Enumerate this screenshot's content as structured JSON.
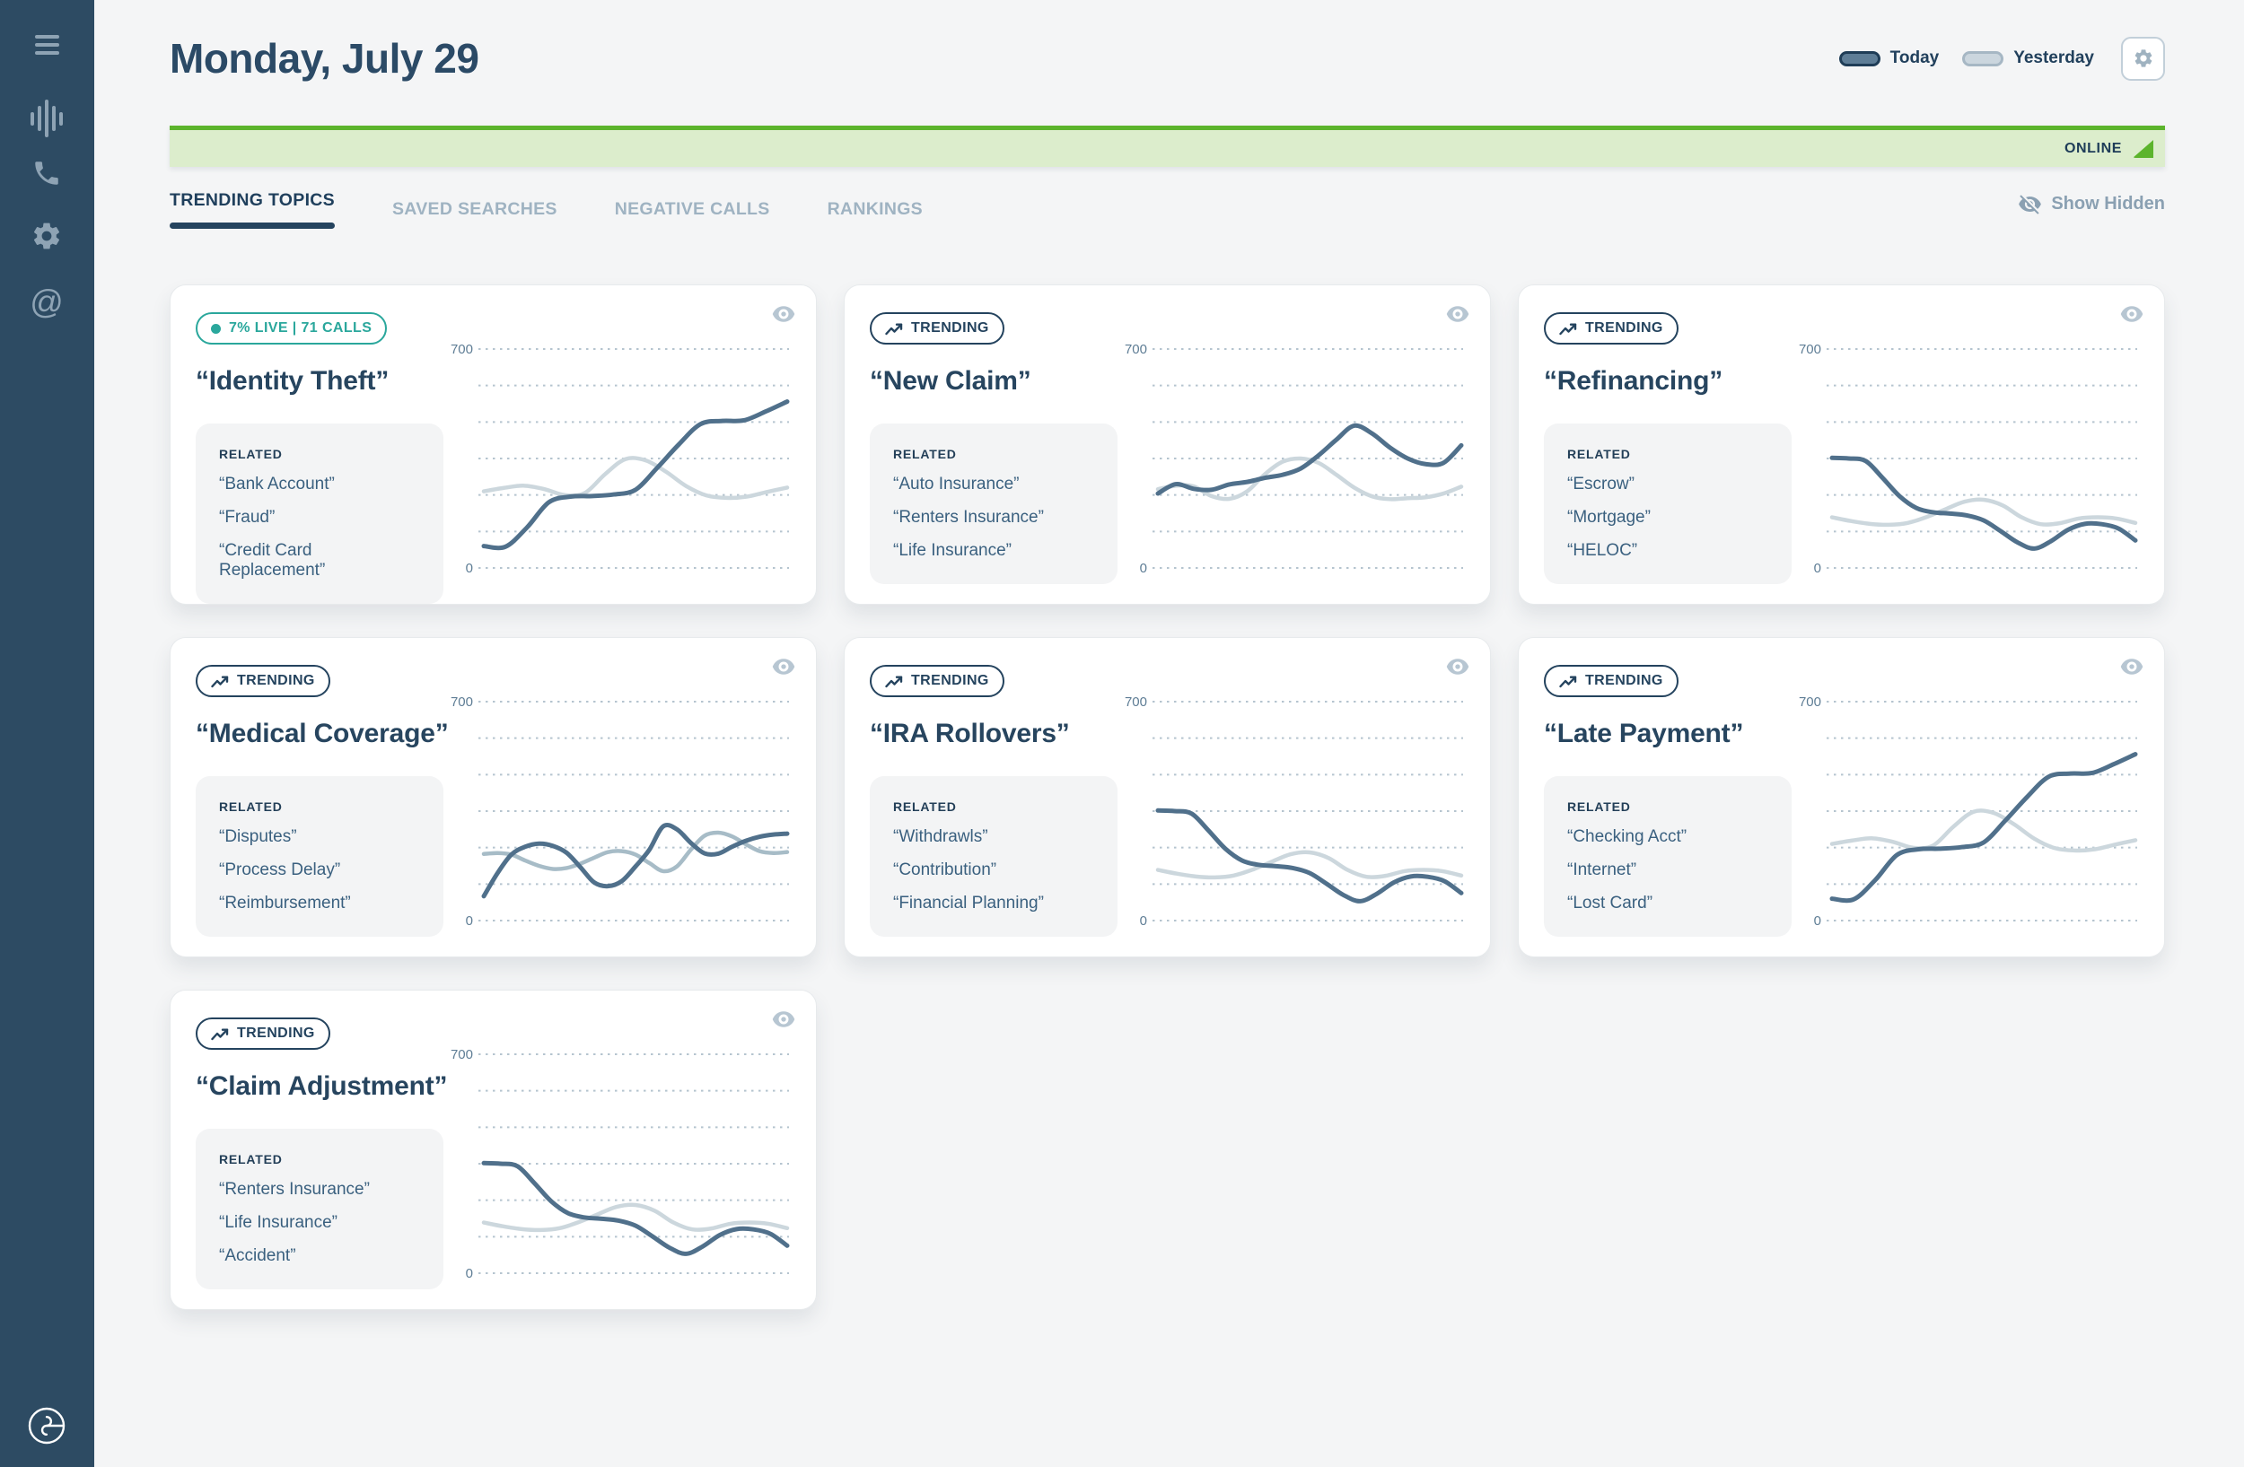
{
  "sidebar": {
    "icons": [
      {
        "name": "menu"
      },
      {
        "name": "call-waveform"
      },
      {
        "name": "phone"
      },
      {
        "name": "settings"
      },
      {
        "name": "mentions"
      }
    ]
  },
  "header": {
    "title": "Monday, July 29",
    "legend": [
      {
        "label": "Today",
        "color": "#5e7d96"
      },
      {
        "label": "Yesterday",
        "color": "#cbd6de"
      }
    ]
  },
  "banner": {
    "status": "ONLINE"
  },
  "tabs": [
    {
      "label": "TRENDING TOPICS",
      "active": true
    },
    {
      "label": "SAVED SEARCHES",
      "active": false
    },
    {
      "label": "NEGATIVE CALLS",
      "active": false
    },
    {
      "label": "RANKINGS",
      "active": false
    }
  ],
  "show_hidden_label": "Show Hidden",
  "related_label": "RELATED",
  "colors": {
    "accent_teal": "#2aa79c",
    "navy": "#24435e",
    "online_green": "#5cb42c",
    "online_green_bg": "#dcedcc",
    "today_line": "#50708b",
    "yesterday_line": "#ccd7dd"
  },
  "cards": [
    {
      "badge": {
        "type": "live",
        "text": "7% LIVE | 71 CALLS"
      },
      "title": "“Identity Theft”",
      "related": [
        "“Bank Account”",
        "“Fraud”",
        "“Credit Card Replacement”"
      ]
    },
    {
      "badge": {
        "type": "trending",
        "text": "TRENDING"
      },
      "title": "“New Claim”",
      "related": [
        "“Auto Insurance”",
        "“Renters Insurance”",
        "“Life Insurance”"
      ]
    },
    {
      "badge": {
        "type": "trending",
        "text": "TRENDING"
      },
      "title": "“Refinancing”",
      "related": [
        "“Escrow”",
        "“Mortgage”",
        "“HELOC”"
      ]
    },
    {
      "badge": {
        "type": "trending",
        "text": "TRENDING"
      },
      "title": "“Medical Coverage”",
      "related": [
        "“Disputes”",
        "“Process Delay”",
        "“Reimbursement”"
      ]
    },
    {
      "badge": {
        "type": "trending",
        "text": "TRENDING"
      },
      "title": "“IRA Rollovers”",
      "related": [
        "“Withdrawls”",
        "“Contribution”",
        "“Financial Planning”"
      ]
    },
    {
      "badge": {
        "type": "trending",
        "text": "TRENDING"
      },
      "title": "“Late Payment”",
      "related": [
        "“Checking Acct”",
        "“Internet”",
        "“Lost Card”"
      ]
    },
    {
      "badge": {
        "type": "trending",
        "text": "TRENDING"
      },
      "title": "“Claim Adjustment”",
      "related": [
        "“Renters Insurance”",
        "“Life Insurance”",
        "“Accident”"
      ]
    }
  ],
  "chart_data": [
    {
      "type": "line",
      "topic": "Identity Theft",
      "ylim": [
        0,
        700
      ],
      "yticks": [
        "700",
        "0"
      ],
      "gridlines": 7,
      "grid_style": "dotted",
      "legend_position": "page-header",
      "series": [
        {
          "name": "Today",
          "color": "#50708b",
          "values": [
            70,
            68,
            130,
            210,
            228,
            230,
            235,
            250,
            320,
            395,
            460,
            470,
            472,
            500,
            532
          ]
        },
        {
          "name": "Yesterday",
          "color": "#ccd7dd",
          "values": [
            245,
            256,
            263,
            252,
            233,
            240,
            300,
            348,
            344,
            308,
            262,
            232,
            224,
            228,
            243,
            257
          ]
        }
      ]
    },
    {
      "type": "line",
      "topic": "New Claim",
      "ylim": [
        0,
        700
      ],
      "yticks": [
        "700",
        "0"
      ],
      "gridlines": 7,
      "grid_style": "dotted",
      "legend_position": "page-header",
      "series": [
        {
          "name": "Today",
          "color": "#50708b",
          "values": [
            238,
            268,
            253,
            250,
            267,
            275,
            288,
            298,
            318,
            360,
            410,
            455,
            430,
            385,
            350,
            332,
            336,
            392
          ]
        },
        {
          "name": "Yesterday",
          "color": "#ccd7dd",
          "values": [
            252,
            263,
            261,
            230,
            221,
            245,
            300,
            340,
            350,
            336,
            298,
            257,
            229,
            220,
            223,
            226,
            238,
            260
          ]
        }
      ]
    },
    {
      "type": "line",
      "topic": "Refinancing",
      "ylim": [
        0,
        700
      ],
      "yticks": [
        "700",
        "0"
      ],
      "gridlines": 7,
      "grid_style": "dotted",
      "legend_position": "page-header",
      "series": [
        {
          "name": "Today",
          "color": "#50708b",
          "values": [
            352,
            350,
            342,
            288,
            230,
            192,
            178,
            174,
            168,
            152,
            118,
            82,
            62,
            86,
            122,
            141,
            140,
            126,
            88
          ]
        },
        {
          "name": "Yesterday",
          "color": "#ccd7dd",
          "values": [
            162,
            150,
            141,
            138,
            144,
            163,
            188,
            212,
            218,
            200,
            162,
            140,
            143,
            158,
            162,
            158,
            144
          ]
        }
      ]
    },
    {
      "type": "line",
      "topic": "Medical Coverage",
      "ylim": [
        0,
        700
      ],
      "yticks": [
        "700",
        "0"
      ],
      "gridlines": 7,
      "grid_style": "dotted",
      "legend_position": "page-header",
      "series": [
        {
          "name": "Today",
          "color": "#50708b",
          "values": [
            78,
            152,
            211,
            236,
            246,
            239,
            217,
            171,
            122,
            110,
            126,
            173,
            226,
            301,
            292,
            249,
            215,
            214,
            236,
            255,
            268,
            275,
            278
          ]
        },
        {
          "name": "Yesterday",
          "color": "#a7bcc7",
          "values": [
            213,
            216,
            211,
            192,
            175,
            165,
            168,
            182,
            201,
            219,
            222,
            211,
            184,
            158,
            173,
            226,
            271,
            281,
            269,
            244,
            222,
            216,
            219
          ]
        }
      ]
    },
    {
      "type": "line",
      "topic": "IRA Rollovers",
      "ylim": [
        0,
        700
      ],
      "yticks": [
        "700",
        "0"
      ],
      "gridlines": 7,
      "grid_style": "dotted",
      "legend_position": "page-header",
      "series": [
        {
          "name": "Today",
          "color": "#50708b",
          "values": [
            352,
            350,
            342,
            288,
            230,
            192,
            178,
            174,
            168,
            152,
            118,
            82,
            62,
            86,
            122,
            141,
            140,
            126,
            88
          ]
        },
        {
          "name": "Yesterday",
          "color": "#ccd7dd",
          "values": [
            162,
            150,
            141,
            138,
            144,
            163,
            188,
            212,
            218,
            200,
            162,
            140,
            143,
            158,
            162,
            158,
            144
          ]
        }
      ]
    },
    {
      "type": "line",
      "topic": "Late Payment",
      "ylim": [
        0,
        700
      ],
      "yticks": [
        "700",
        "0"
      ],
      "gridlines": 7,
      "grid_style": "dotted",
      "legend_position": "page-header",
      "series": [
        {
          "name": "Today",
          "color": "#50708b",
          "values": [
            70,
            68,
            130,
            210,
            228,
            230,
            235,
            250,
            320,
            395,
            460,
            470,
            472,
            500,
            532
          ]
        },
        {
          "name": "Yesterday",
          "color": "#ccd7dd",
          "values": [
            245,
            256,
            263,
            252,
            233,
            240,
            300,
            348,
            344,
            308,
            262,
            232,
            224,
            228,
            243,
            257
          ]
        }
      ]
    },
    {
      "type": "line",
      "topic": "Claim Adjustment",
      "ylim": [
        0,
        700
      ],
      "yticks": [
        "700",
        "0"
      ],
      "gridlines": 7,
      "grid_style": "dotted",
      "legend_position": "page-header",
      "series": [
        {
          "name": "Today",
          "color": "#50708b",
          "values": [
            352,
            350,
            342,
            288,
            230,
            192,
            178,
            174,
            168,
            152,
            118,
            82,
            62,
            86,
            122,
            141,
            140,
            126,
            88
          ]
        },
        {
          "name": "Yesterday",
          "color": "#ccd7dd",
          "values": [
            162,
            150,
            141,
            138,
            144,
            163,
            188,
            212,
            218,
            200,
            162,
            140,
            143,
            158,
            162,
            158,
            144
          ]
        }
      ]
    }
  ]
}
